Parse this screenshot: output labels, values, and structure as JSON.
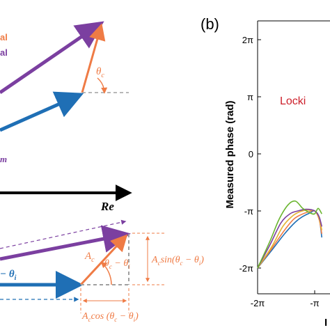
{
  "panel_a": {
    "label_signal1": "al",
    "label_signal2": "al",
    "label_theta_c_top": "θ",
    "label_theta_c_top_sub": "c",
    "label_m": "m",
    "axis_re": "Re",
    "label_minus_theta_i": "− θ",
    "label_minus_theta_i_sub": "i",
    "label_Ac": "A",
    "label_Ac_sub": "c",
    "label_diff": "θ",
    "label_diff_rest": "c",
    "label_diff_minus": " − θ",
    "label_diff_i": "i",
    "label_sin": "A",
    "label_sin_sub": "c",
    "label_sin_rest": "sin(θ",
    "label_sin_c": "c",
    "label_sin_minus": " − θ",
    "label_sin_i": "i",
    "label_sin_close": ")",
    "label_cos": "A",
    "label_cos_sub": "c",
    "label_cos_rest": "cos (θ",
    "label_cos_c": "c",
    "label_cos_minus": " − θ",
    "label_cos_i": "i",
    "label_cos_close": ")",
    "colors": {
      "purple": "#7b3fa0",
      "blue": "#1f6fb5",
      "orange": "#ef7b45",
      "grey": "#a0a0a0"
    }
  },
  "panel_b": {
    "panel_label": "(b)",
    "ylabel": "Measured phase (rad)",
    "annotation": "Locki",
    "xlabel_partial": "I",
    "yticks": [
      "2π",
      "π",
      "0",
      "-π",
      "-2π"
    ],
    "xticks": [
      "-2π",
      "-π"
    ]
  },
  "chart_data": {
    "type": "line",
    "ylabel": "Measured phase (rad)",
    "ylim": [
      -6.8,
      6.8
    ],
    "xlim": [
      -6.283,
      -2.5
    ],
    "series": [
      {
        "color": "#1f6fb5",
        "x": [
          -6.283,
          -5.5,
          -4.8,
          -4.2,
          -3.8,
          -3.4,
          -3.14,
          -2.9,
          -2.75
        ],
        "y": [
          -6.283,
          -5.3,
          -4.4,
          -3.75,
          -3.45,
          -3.25,
          -3.14,
          -3.5,
          -4.6
        ]
      },
      {
        "color": "#ef7b45",
        "x": [
          -6.283,
          -5.5,
          -4.8,
          -4.3,
          -3.9,
          -3.5,
          -3.14,
          -2.9,
          -2.75
        ],
        "y": [
          -6.283,
          -5.2,
          -4.2,
          -3.6,
          -3.35,
          -3.2,
          -3.14,
          -3.6,
          -4.4
        ]
      },
      {
        "color": "#e3b432",
        "x": [
          -6.283,
          -5.5,
          -4.9,
          -4.4,
          -4.0,
          -3.6,
          -3.14,
          -2.9,
          -2.75
        ],
        "y": [
          -6.283,
          -5.1,
          -4.0,
          -3.45,
          -3.2,
          -3.1,
          -3.14,
          -3.55,
          -4.2
        ]
      },
      {
        "color": "#7b3fa0",
        "x": [
          -6.283,
          -5.6,
          -5.0,
          -4.5,
          -4.1,
          -3.6,
          -3.14,
          -2.9,
          -2.75
        ],
        "y": [
          -6.283,
          -5.0,
          -3.8,
          -3.3,
          -3.15,
          -3.05,
          -3.14,
          -3.45,
          -4.0
        ]
      },
      {
        "color": "#6ab52f",
        "x": [
          -6.283,
          -5.6,
          -5.1,
          -4.6,
          -4.2,
          -3.8,
          -3.4,
          -3.14,
          -2.95,
          -2.75
        ],
        "y": [
          -6.283,
          -4.8,
          -3.6,
          -2.8,
          -2.6,
          -3.0,
          -3.25,
          -3.3,
          -3.0,
          -3.3
        ]
      }
    ]
  }
}
